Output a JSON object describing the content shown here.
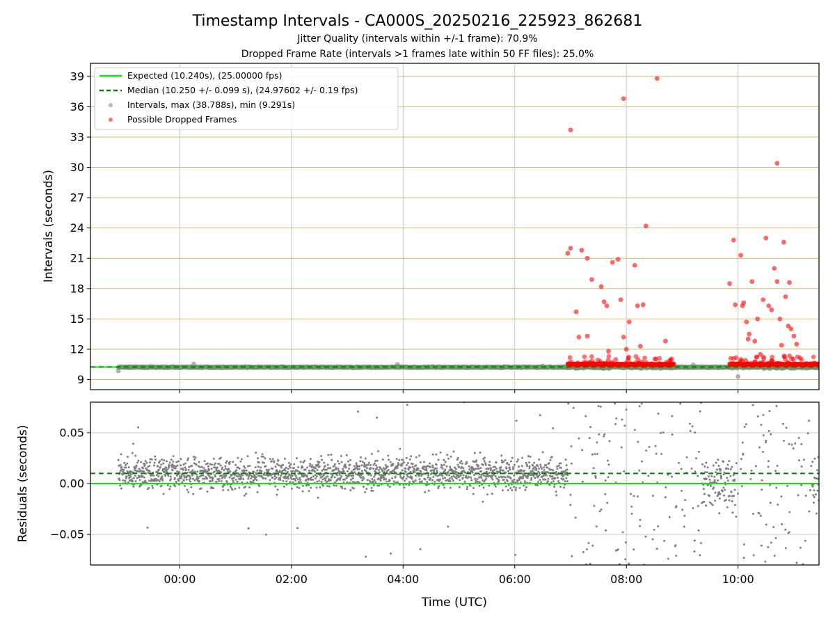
{
  "chart_data": [
    {
      "type": "scatter",
      "title": "Timestamp Intervals - CA000S_20250216_225923_862681",
      "subtitle_1": "Jitter Quality (intervals within +/-1 frame): 70.9%",
      "subtitle_2": "Dropped Frame Rate (intervals >1 frames late within 50 FF files): 25.0%",
      "ylabel": "Intervals (seconds)",
      "ylim": [
        8.0,
        40.3
      ],
      "yticks": [
        "9",
        "12",
        "15",
        "18",
        "21",
        "24",
        "27",
        "30",
        "33",
        "36",
        "39"
      ],
      "grid": "horizontal lines at y ticks (tan) and vertical lines at x ticks (gray)",
      "legend_position": "upper-left",
      "legend": [
        "Expected (10.240s), (25.00000 fps)",
        "Median (10.250 +/- 0.099 s), (24.97602 +/- 0.19 fps)",
        "Intervals, max (38.788s), min (9.291s)",
        "Possible Dropped Frames"
      ],
      "expected_interval": 10.24,
      "median_interval": 10.25,
      "interval_range": {
        "max": 38.788,
        "min": 9.291,
        "typical": "about 10.2 s",
        "first_hour": -1.1,
        "last_hour": 11.45
      },
      "dropped_frame_windows_hours": [
        [
          6.95,
          8.85
        ],
        [
          9.85,
          11.45
        ]
      ],
      "dropped_frames_outliers": [
        {
          "x": 6.95,
          "y": 21.5
        },
        {
          "x": 7.0,
          "y": 22.0
        },
        {
          "x": 7.0,
          "y": 33.7
        },
        {
          "x": 7.1,
          "y": 15.7
        },
        {
          "x": 7.15,
          "y": 13.2
        },
        {
          "x": 7.2,
          "y": 21.8
        },
        {
          "x": 7.3,
          "y": 21.0
        },
        {
          "x": 7.3,
          "y": 13.3
        },
        {
          "x": 7.38,
          "y": 18.9
        },
        {
          "x": 7.55,
          "y": 18.2
        },
        {
          "x": 7.6,
          "y": 16.7
        },
        {
          "x": 7.65,
          "y": 16.3
        },
        {
          "x": 7.68,
          "y": 11.8
        },
        {
          "x": 7.75,
          "y": 20.6
        },
        {
          "x": 7.85,
          "y": 20.9
        },
        {
          "x": 7.9,
          "y": 16.9
        },
        {
          "x": 7.95,
          "y": 36.8
        },
        {
          "x": 7.95,
          "y": 13.2
        },
        {
          "x": 8.0,
          "y": 12.0
        },
        {
          "x": 8.05,
          "y": 14.7
        },
        {
          "x": 8.15,
          "y": 20.3
        },
        {
          "x": 8.2,
          "y": 16.3
        },
        {
          "x": 8.25,
          "y": 12.3
        },
        {
          "x": 8.3,
          "y": 16.4
        },
        {
          "x": 8.35,
          "y": 24.2
        },
        {
          "x": 8.55,
          "y": 38.8
        },
        {
          "x": 8.7,
          "y": 12.8
        },
        {
          "x": 9.85,
          "y": 18.5
        },
        {
          "x": 9.92,
          "y": 22.8
        },
        {
          "x": 9.95,
          "y": 16.4
        },
        {
          "x": 10.05,
          "y": 21.3
        },
        {
          "x": 10.08,
          "y": 16.3
        },
        {
          "x": 10.1,
          "y": 16.6
        },
        {
          "x": 10.15,
          "y": 14.7
        },
        {
          "x": 10.18,
          "y": 13.0
        },
        {
          "x": 10.2,
          "y": 13.5
        },
        {
          "x": 10.25,
          "y": 18.7
        },
        {
          "x": 10.3,
          "y": 12.8
        },
        {
          "x": 10.35,
          "y": 15.0
        },
        {
          "x": 10.4,
          "y": 11.5
        },
        {
          "x": 10.45,
          "y": 16.9
        },
        {
          "x": 10.5,
          "y": 23.0
        },
        {
          "x": 10.55,
          "y": 16.3
        },
        {
          "x": 10.6,
          "y": 15.9
        },
        {
          "x": 10.65,
          "y": 20.0
        },
        {
          "x": 10.7,
          "y": 18.7
        },
        {
          "x": 10.75,
          "y": 15.0
        },
        {
          "x": 10.78,
          "y": 12.4
        },
        {
          "x": 10.7,
          "y": 30.4
        },
        {
          "x": 10.82,
          "y": 22.6
        },
        {
          "x": 10.85,
          "y": 17.2
        },
        {
          "x": 10.9,
          "y": 14.3
        },
        {
          "x": 10.92,
          "y": 18.6
        },
        {
          "x": 10.95,
          "y": 14.0
        },
        {
          "x": 11.0,
          "y": 13.3
        },
        {
          "x": 11.05,
          "y": 12.5
        }
      ]
    },
    {
      "type": "scatter",
      "ylabel": "Residuals (seconds)",
      "xlabel": "Time (UTC)",
      "ylim": [
        -0.08,
        0.08
      ],
      "yticks": [
        "0.05",
        "0.00",
        "−0.05"
      ],
      "xlim": [
        -1.6,
        11.45
      ],
      "xticks": [
        "00:00",
        "02:00",
        "04:00",
        "06:00",
        "08:00",
        "10:00"
      ],
      "grid": "on",
      "expected_residual": 0.0,
      "median_residual": 0.01,
      "residual_spread": {
        "quiet_period_hours": [
          -1.1,
          6.95
        ],
        "quiet_range": [
          -0.03,
          0.04
        ],
        "busy_range": [
          -0.08,
          0.08
        ]
      }
    }
  ],
  "colors": {
    "expected": "#00ee00",
    "median": "#008000",
    "intervals": "#808080",
    "dropped": "#ff0000",
    "hgrid": "#d4bc6a",
    "vgrid": "#c8c8c8"
  }
}
